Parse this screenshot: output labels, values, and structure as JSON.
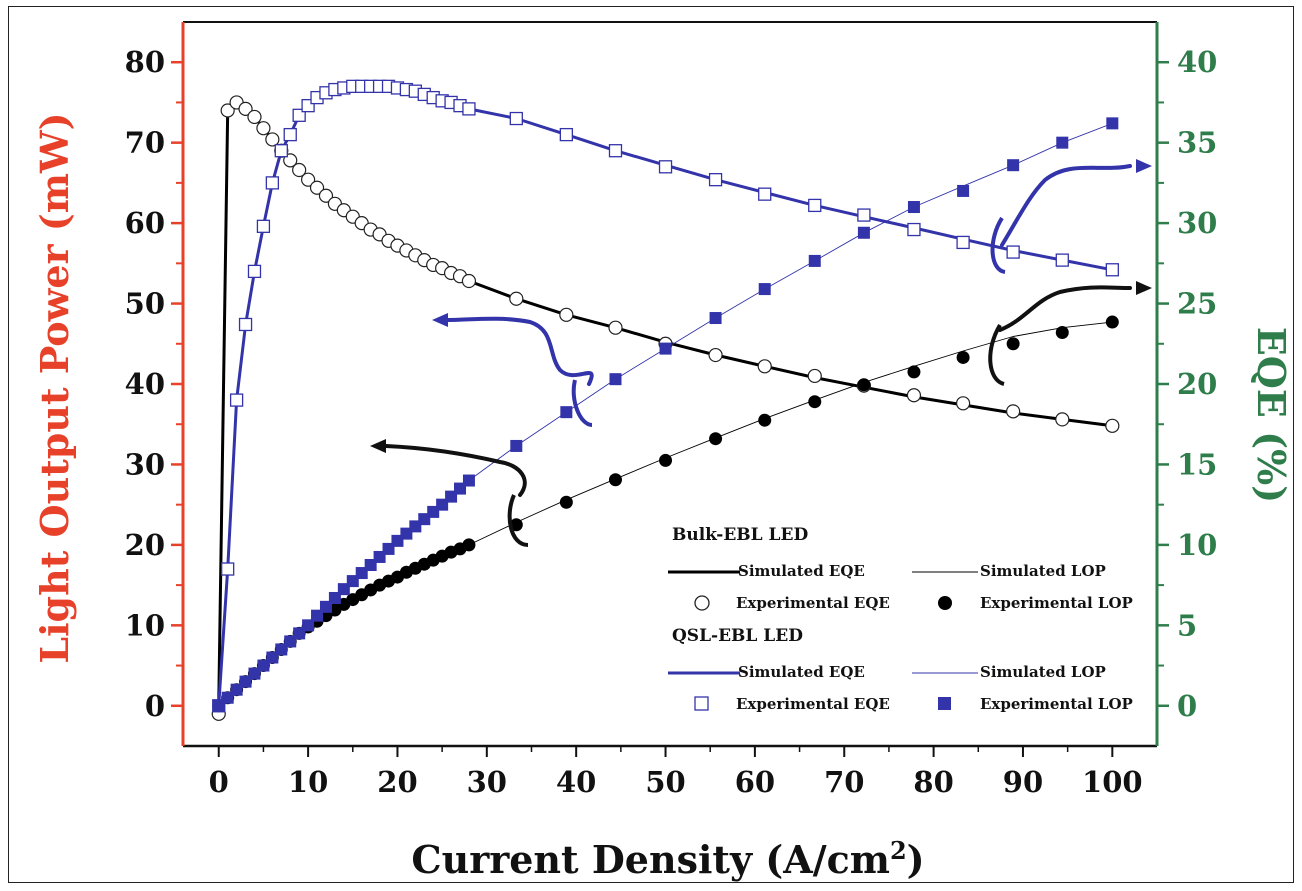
{
  "chart_data": {
    "type": "line",
    "xlabel": "Current Density (A/cm",
    "xlabel_sup": "2",
    "xlabel_end": ")",
    "ylabel_left": "Light Output Power (mW)",
    "ylabel_right": "EQE (%)",
    "xlim": [
      -4,
      105
    ],
    "ylim_left": [
      -5,
      85
    ],
    "ylim_right": [
      -2.5,
      42.5
    ],
    "x_ticks": [
      0,
      10,
      20,
      30,
      40,
      50,
      60,
      70,
      80,
      90,
      100
    ],
    "y_left_ticks": [
      0,
      10,
      20,
      30,
      40,
      50,
      60,
      70,
      80
    ],
    "y_right_ticks": [
      0,
      5,
      10,
      15,
      20,
      25,
      30,
      35,
      40
    ],
    "colors": {
      "left_axis": "#e8412a",
      "right_axis": "#2e7d4a",
      "bulk": "#000000",
      "qsl": "#3333aa"
    },
    "legend": {
      "groups": [
        {
          "title": "Bulk-EBL LED",
          "sim_eqe": "Simulated EQE",
          "sim_lop": "Simulated LOP",
          "exp_eqe": "Experimental EQE",
          "exp_lop": "Experimental LOP"
        },
        {
          "title": "QSL-EBL LED",
          "sim_eqe": "Simulated EQE",
          "sim_lop": "Simulated LOP",
          "exp_eqe": "Experimental EQE",
          "exp_lop": "Experimental LOP"
        }
      ]
    },
    "series": [
      {
        "name": "Bulk-EBL LED Experimental EQE",
        "axis": "right",
        "marker": "open-circle",
        "color": "#000000",
        "x": [
          0,
          1,
          2,
          3,
          4,
          5,
          6,
          7,
          8,
          9,
          10,
          11,
          12,
          13,
          14,
          15,
          16,
          17,
          18,
          19,
          20,
          21,
          22,
          23,
          24,
          25,
          26,
          27,
          28,
          33.3,
          38.9,
          44.4,
          50,
          55.6,
          61.1,
          66.7,
          72.2,
          77.8,
          83.3,
          88.9,
          94.4,
          100
        ],
        "y": [
          -0.5,
          37.0,
          37.5,
          37.1,
          36.6,
          35.9,
          35.2,
          34.5,
          33.9,
          33.3,
          32.7,
          32.2,
          31.7,
          31.2,
          30.8,
          30.4,
          30.0,
          29.6,
          29.3,
          28.9,
          28.6,
          28.3,
          28.0,
          27.7,
          27.4,
          27.2,
          26.9,
          26.7,
          26.4,
          25.3,
          24.3,
          23.5,
          22.5,
          21.8,
          21.1,
          20.5,
          19.9,
          19.3,
          18.8,
          18.3,
          17.8,
          17.4
        ]
      },
      {
        "name": "Bulk-EBL LED Experimental LOP",
        "axis": "left",
        "marker": "filled-circle",
        "color": "#000000",
        "x": [
          0,
          1,
          2,
          3,
          4,
          5,
          6,
          7,
          8,
          9,
          10,
          11,
          12,
          13,
          14,
          15,
          16,
          17,
          18,
          19,
          20,
          21,
          22,
          23,
          24,
          25,
          26,
          27,
          28,
          33.3,
          38.9,
          44.4,
          50,
          55.6,
          61.1,
          66.7,
          72.2,
          77.8,
          83.3,
          88.9,
          94.4,
          100
        ],
        "y": [
          0,
          1.0,
          2.0,
          3.0,
          4.0,
          5.0,
          6.0,
          7.0,
          8.0,
          9.0,
          9.8,
          10.5,
          11.2,
          11.9,
          12.6,
          13.2,
          13.8,
          14.4,
          15.0,
          15.5,
          16.0,
          16.6,
          17.1,
          17.6,
          18.1,
          18.6,
          19.1,
          19.5,
          20.0,
          22.5,
          25.3,
          28.1,
          30.5,
          33.2,
          35.5,
          37.8,
          39.9,
          41.5,
          43.3,
          45.0,
          46.4,
          47.7
        ]
      },
      {
        "name": "QSL-EBL LED Experimental EQE",
        "axis": "right",
        "marker": "open-square",
        "color": "#3333aa",
        "x": [
          0,
          1,
          2,
          3,
          4,
          5,
          6,
          7,
          8,
          9,
          10,
          11,
          12,
          13,
          14,
          15,
          16,
          17,
          18,
          19,
          20,
          21,
          22,
          23,
          24,
          25,
          26,
          27,
          28,
          33.3,
          38.9,
          44.4,
          50,
          55.6,
          61.1,
          66.7,
          72.2,
          77.8,
          83.3,
          88.9,
          94.4,
          100
        ],
        "y": [
          0,
          8.5,
          19.0,
          23.7,
          27.0,
          29.8,
          32.5,
          34.5,
          35.5,
          36.7,
          37.3,
          37.8,
          38.1,
          38.3,
          38.4,
          38.5,
          38.5,
          38.5,
          38.5,
          38.5,
          38.4,
          38.3,
          38.2,
          38.0,
          37.8,
          37.6,
          37.5,
          37.3,
          37.1,
          36.5,
          35.5,
          34.5,
          33.5,
          32.7,
          31.8,
          31.1,
          30.5,
          29.6,
          28.8,
          28.2,
          27.7,
          27.1
        ]
      },
      {
        "name": "QSL-EBL LED Experimental LOP",
        "axis": "left",
        "marker": "filled-square",
        "color": "#3333aa",
        "x": [
          0,
          1,
          2,
          3,
          4,
          5,
          6,
          7,
          8,
          9,
          10,
          11,
          12,
          13,
          14,
          15,
          16,
          17,
          18,
          19,
          20,
          21,
          22,
          23,
          24,
          25,
          26,
          27,
          28,
          33.3,
          38.9,
          44.4,
          50,
          55.6,
          61.1,
          66.7,
          72.2,
          77.8,
          83.3,
          88.9,
          94.4,
          100
        ],
        "y": [
          0,
          1.0,
          2.0,
          3.0,
          4.0,
          5.0,
          6.0,
          7.0,
          8.0,
          9.0,
          10.0,
          11.2,
          12.3,
          13.4,
          14.5,
          15.5,
          16.5,
          17.5,
          18.5,
          19.5,
          20.5,
          21.4,
          22.3,
          23.2,
          24.1,
          25.0,
          26.0,
          27.0,
          28.0,
          32.3,
          36.5,
          40.6,
          44.4,
          48.2,
          51.8,
          55.3,
          58.8,
          62.0,
          64.0,
          67.2,
          70.0,
          72.4
        ]
      }
    ],
    "simulated": [
      {
        "name": "Bulk-EBL LED Simulated EQE",
        "axis": "right",
        "color": "#000000",
        "style": "solid-thick",
        "x": [
          0,
          1,
          2,
          4,
          6,
          8,
          10,
          12,
          14,
          16,
          18,
          20,
          22,
          24,
          26,
          28,
          33.3,
          38.9,
          44.4,
          50,
          55.6,
          61.1,
          66.7,
          72.2,
          77.8,
          83.3,
          88.9,
          94.4,
          100
        ],
        "y": [
          0,
          37.0,
          37.5,
          36.6,
          35.2,
          33.9,
          32.7,
          31.7,
          30.8,
          30.0,
          29.3,
          28.6,
          28.0,
          27.4,
          26.9,
          26.4,
          25.3,
          24.3,
          23.5,
          22.6,
          21.8,
          21.1,
          20.4,
          19.8,
          19.2,
          18.7,
          18.2,
          17.8,
          17.4
        ]
      },
      {
        "name": "Bulk-EBL LED Simulated LOP",
        "axis": "left",
        "color": "#000000",
        "style": "thin",
        "x": [
          0,
          10,
          20,
          28,
          33.3,
          38.9,
          44.4,
          50,
          55.6,
          61.1,
          66.7,
          72.2,
          77.8,
          83.3,
          88.9,
          94.4,
          100
        ],
        "y": [
          0,
          9.8,
          16.0,
          20.0,
          22.8,
          25.6,
          28.2,
          30.8,
          33.3,
          35.7,
          38.0,
          40.2,
          42.2,
          44.1,
          45.9,
          47.0,
          47.7
        ]
      },
      {
        "name": "QSL-EBL LED Simulated EQE",
        "axis": "right",
        "color": "#3333aa",
        "style": "solid-thick",
        "x": [
          0,
          1,
          2,
          3,
          4,
          5,
          6,
          7,
          8,
          9,
          10,
          11,
          12,
          13,
          14,
          16,
          18,
          20,
          22,
          24,
          26,
          28,
          33.3,
          38.9,
          44.4,
          50,
          55.6,
          61.1,
          66.7,
          72.2,
          77.8,
          83.3,
          88.9,
          94.4,
          100
        ],
        "y": [
          0,
          8.5,
          19.0,
          23.7,
          27.0,
          29.8,
          32.5,
          34.5,
          35.5,
          36.7,
          37.3,
          37.8,
          38.1,
          38.3,
          38.4,
          38.5,
          38.5,
          38.4,
          38.2,
          37.8,
          37.5,
          37.1,
          36.5,
          35.5,
          34.5,
          33.6,
          32.7,
          31.9,
          31.1,
          30.4,
          29.7,
          29.0,
          28.3,
          27.7,
          27.1
        ]
      },
      {
        "name": "QSL-EBL LED Simulated LOP",
        "axis": "left",
        "color": "#3333aa",
        "style": "thin",
        "x": [
          0,
          10,
          20,
          28,
          33.3,
          38.9,
          44.4,
          50,
          55.6,
          61.1,
          66.7,
          72.2,
          77.8,
          83.3,
          88.9,
          94.4,
          100
        ],
        "y": [
          0,
          10.0,
          20.5,
          28.0,
          32.3,
          36.5,
          40.6,
          44.4,
          48.2,
          51.8,
          55.3,
          58.8,
          62.0,
          64.6,
          67.2,
          70.0,
          72.4
        ]
      }
    ]
  }
}
